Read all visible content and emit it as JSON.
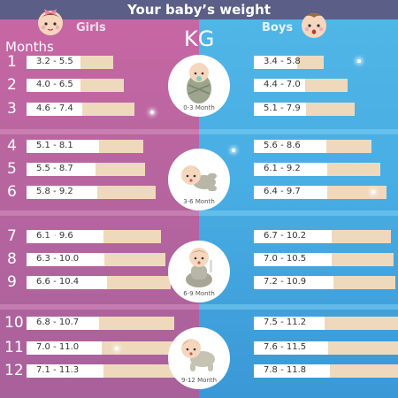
{
  "title": "Your baby’s weight",
  "headers": {
    "girls": "Girls",
    "boys": "Boys",
    "unit": "KG",
    "months": "Months"
  },
  "months": [
    "1",
    "2",
    "3",
    "4",
    "5",
    "6",
    "7",
    "8",
    "9",
    "10",
    "11",
    "12"
  ],
  "girls": [
    "3.2 - 5.5",
    "4.0 - 6.5",
    "4.6 - 7.4",
    "5.1 - 8.1",
    "5.5 - 8.7",
    "5.8 - 9.2",
    "6.1 - 9.6",
    "6.3 - 10.0",
    "6.6 - 10.4",
    "6.8 - 10.7",
    "7.0 - 11.0",
    "7.1 - 11.3"
  ],
  "boys": [
    "3.4 - 5.8",
    "4.4 - 7.0",
    "5.1 - 7.9",
    "5.6 - 8.6",
    "6.1 - 9.2",
    "6.4 - 9.7",
    "6.7 - 10.2",
    "7.0 - 10.5",
    "7.2 - 10.9",
    "7.5 - 11.2",
    "7.6 - 11.5",
    "7.8 - 11.8"
  ],
  "age_groups": [
    "0-3 Month",
    "3-6 Month",
    "6-9 Month",
    "9-12 Month"
  ],
  "colors": {
    "girls_bg": "#b7659f",
    "boys_bg": "#48ade3",
    "bar_fill": "#efd9bc",
    "title_bar": "#5b5e86"
  },
  "icons": [
    "girl-face-icon",
    "boy-face-icon",
    "baby-swaddled-icon",
    "baby-lying-icon",
    "baby-sitting-icon",
    "baby-crawling-icon"
  ]
}
